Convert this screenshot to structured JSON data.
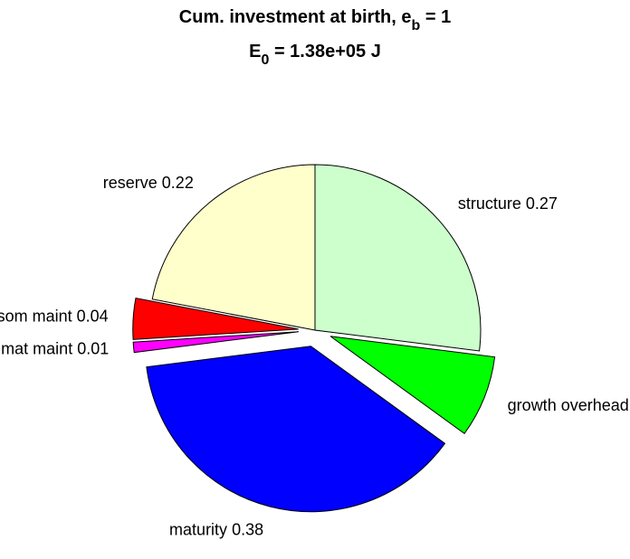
{
  "chart_data": {
    "type": "pie",
    "title_lines": [
      [
        "Cum. investment at birth, e",
        "b",
        " = 1"
      ],
      [
        "E",
        "0",
        " = 1.38e+05 J"
      ]
    ],
    "categories": [
      "structure",
      "growth overhead",
      "maturity",
      "mat maint",
      "som maint",
      "reserve"
    ],
    "values": [
      0.27,
      0.08,
      0.38,
      0.01,
      0.04,
      0.22
    ],
    "colors": [
      "#ccffcc",
      "#00ff00",
      "#0000ff",
      "#ff00ff",
      "#ff0000",
      "#ffffcc"
    ],
    "explode": [
      0,
      1,
      1,
      1,
      1,
      0
    ]
  }
}
